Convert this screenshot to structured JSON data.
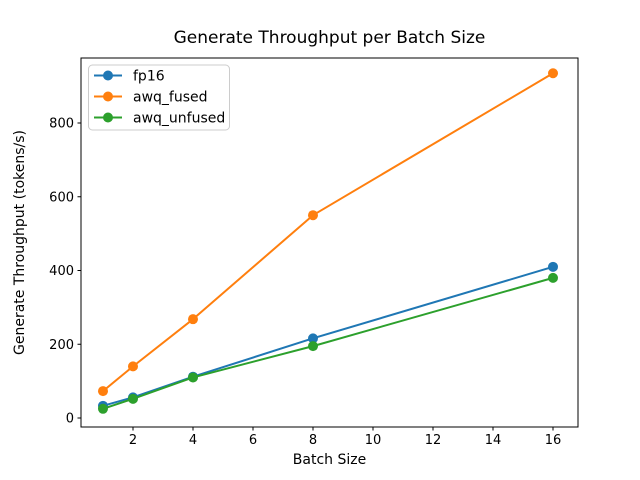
{
  "chart_data": {
    "type": "line",
    "title": "Generate Throughput per Batch Size",
    "xlabel": "Batch Size",
    "ylabel": "Generate Throughput (tokens/s)",
    "x": [
      1,
      2,
      4,
      8,
      16
    ],
    "series": [
      {
        "name": "fp16",
        "color": "#1f77b4",
        "values": [
          33,
          56,
          112,
          216,
          410
        ]
      },
      {
        "name": "awq_fused",
        "color": "#ff7f0e",
        "values": [
          73,
          140,
          268,
          550,
          935
        ]
      },
      {
        "name": "awq_unfused",
        "color": "#2ca02c",
        "values": [
          25,
          52,
          110,
          195,
          380
        ]
      }
    ],
    "xticks": [
      2,
      4,
      6,
      8,
      10,
      12,
      14,
      16
    ],
    "yticks": [
      0,
      200,
      400,
      600,
      800
    ],
    "xlim": [
      0.267,
      16.833
    ],
    "ylim": [
      -24.4,
      976.3
    ],
    "marker": "o",
    "grid": false,
    "legend_position": "upper left",
    "colors": {
      "background": "#ffffff",
      "spine": "#000000",
      "text": "#000000",
      "legend_border": "#cccccc"
    }
  }
}
